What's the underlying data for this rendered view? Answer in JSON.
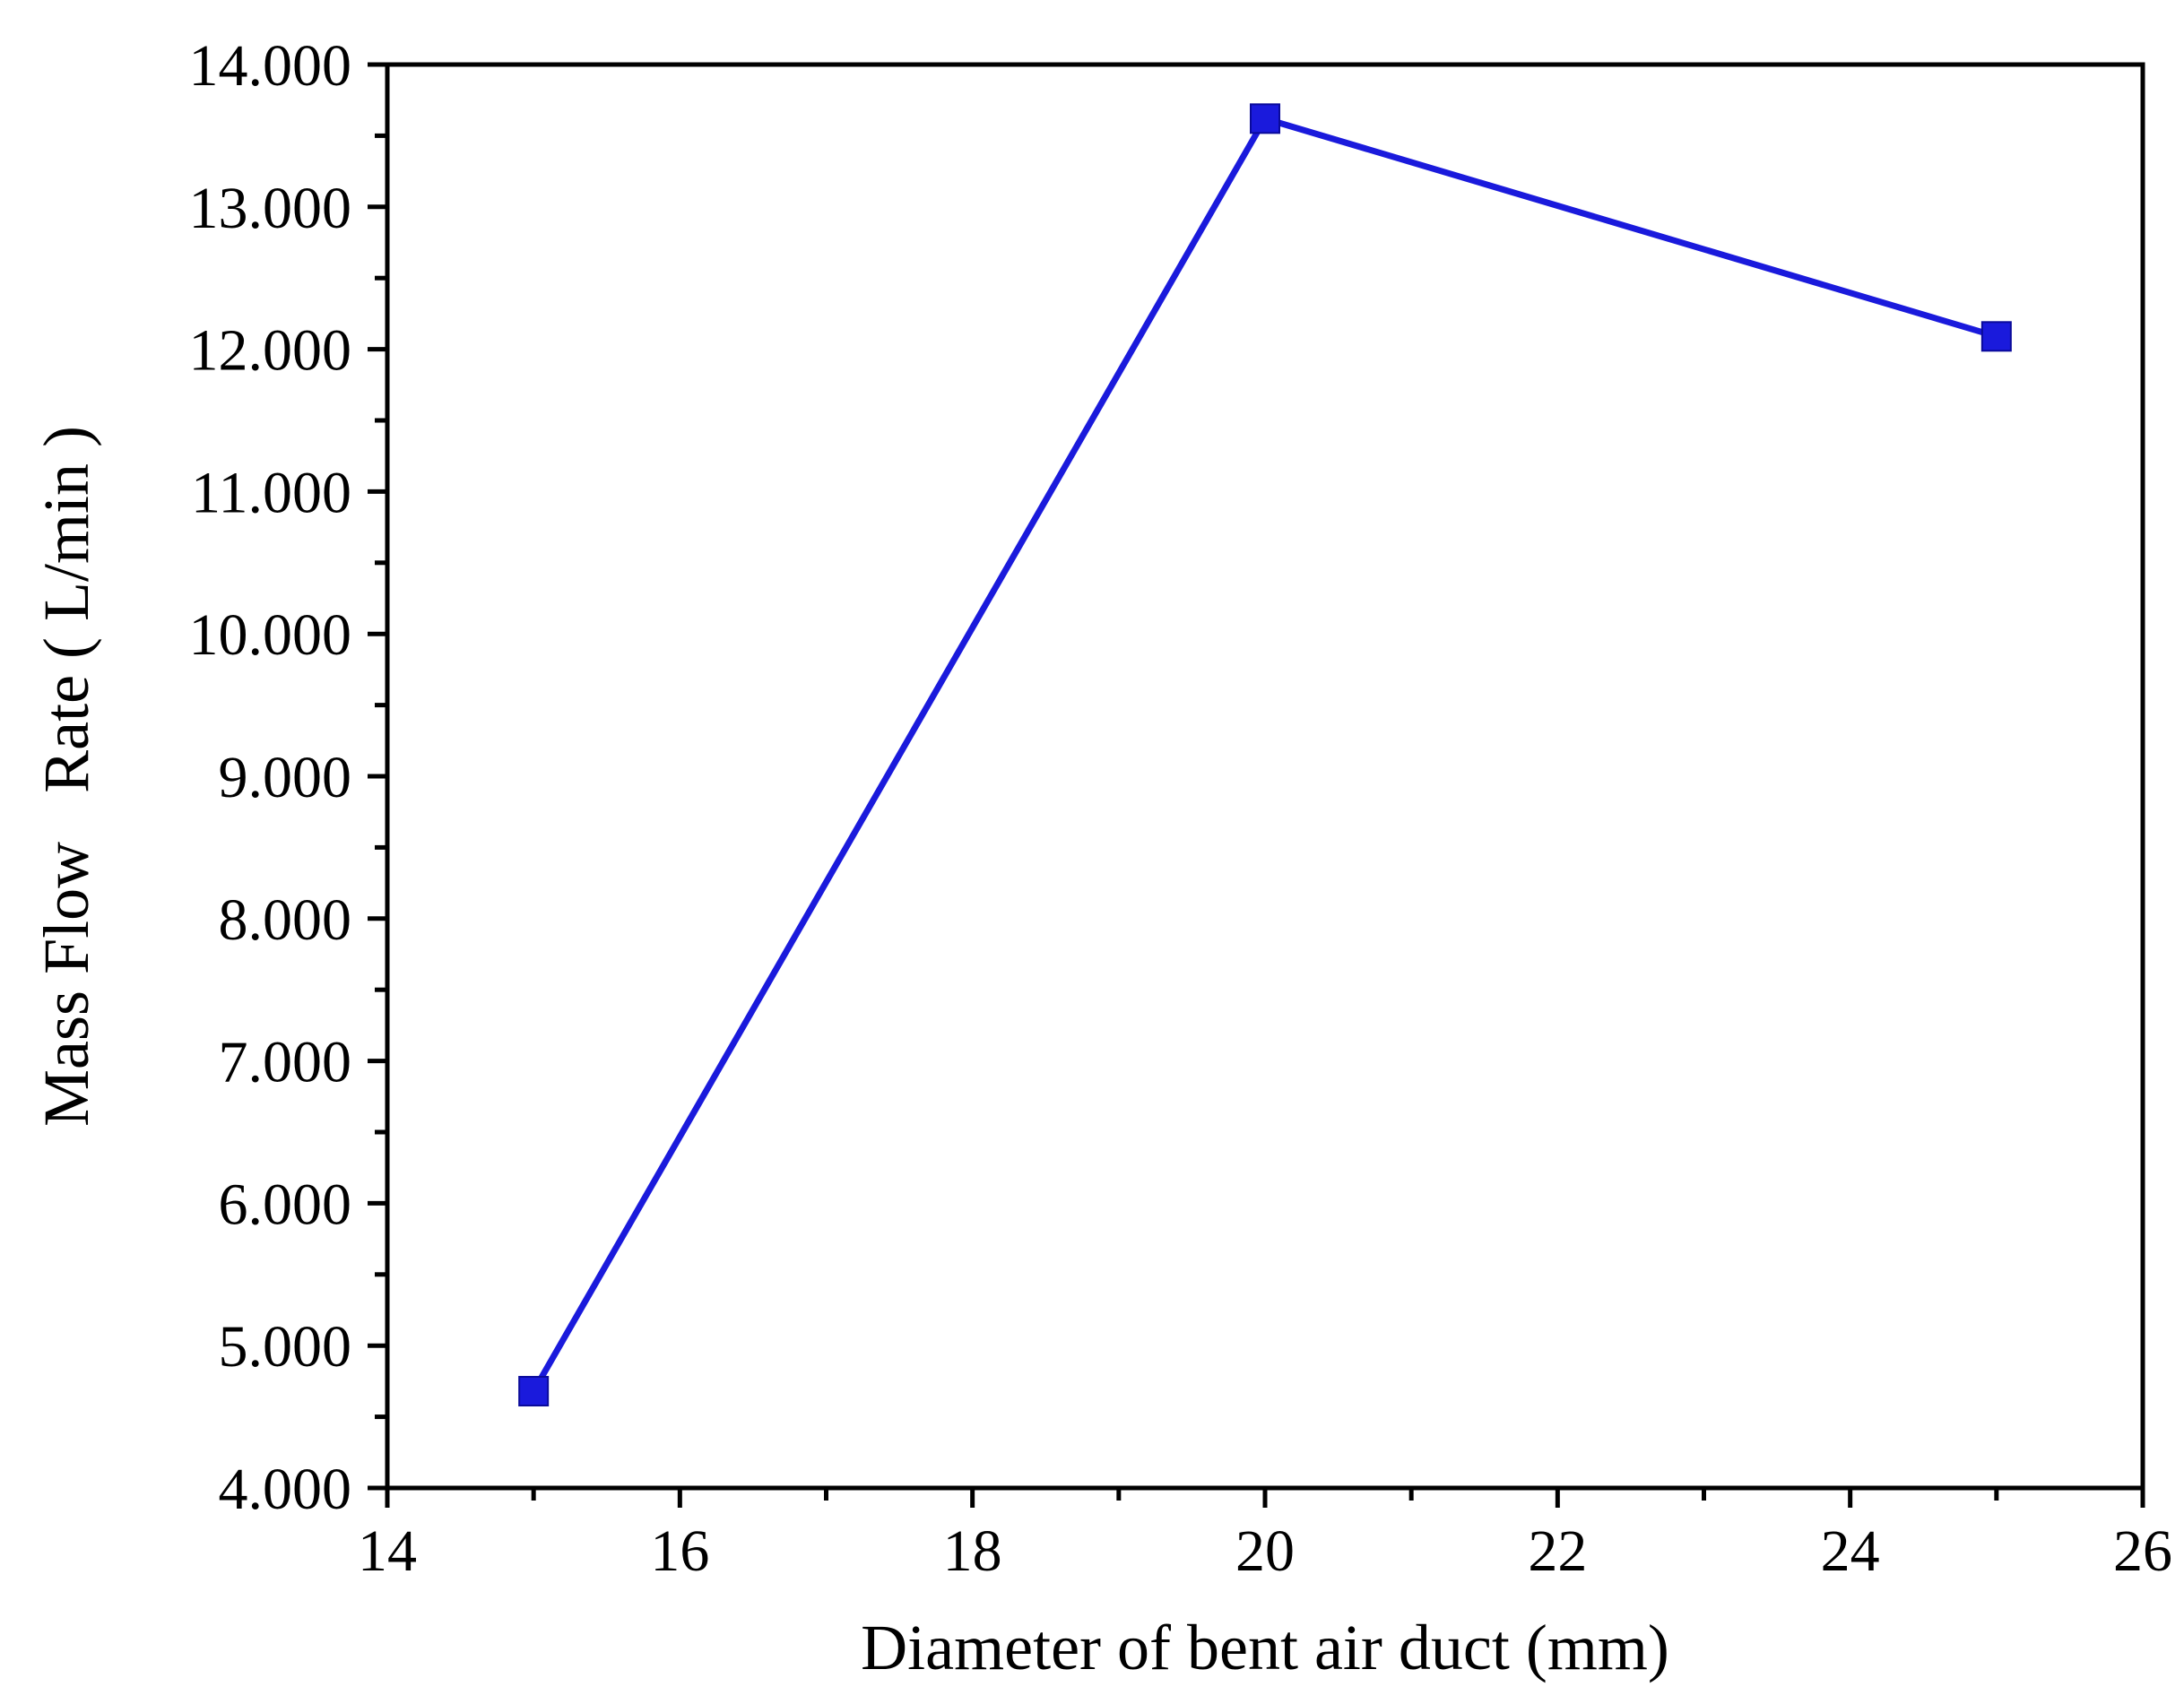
{
  "chart_data": {
    "type": "line",
    "title": "",
    "xlabel": "Diameter of bent air duct (mm)",
    "ylabel": "Mass Flow   Rate ( L/min )",
    "xlim": [
      14,
      26
    ],
    "ylim": [
      4000,
      14000
    ],
    "x_ticks": [
      14,
      16,
      18,
      20,
      22,
      24,
      26
    ],
    "x_tick_labels": [
      "14",
      "16",
      "18",
      "20",
      "22",
      "24",
      "26"
    ],
    "y_ticks": [
      4000,
      5000,
      6000,
      7000,
      8000,
      9000,
      10000,
      11000,
      12000,
      13000,
      14000
    ],
    "y_tick_labels": [
      "4.000",
      "5.000",
      "6.000",
      "7.000",
      "8.000",
      "9.000",
      "10.000",
      "11.000",
      "12.000",
      "13.000",
      "14.000"
    ],
    "grid": false,
    "legend": false,
    "series": [
      {
        "color": "#1a1adc",
        "marker": "square",
        "x": [
          15,
          20,
          25
        ],
        "y": [
          4680,
          13620,
          12090
        ]
      }
    ]
  }
}
